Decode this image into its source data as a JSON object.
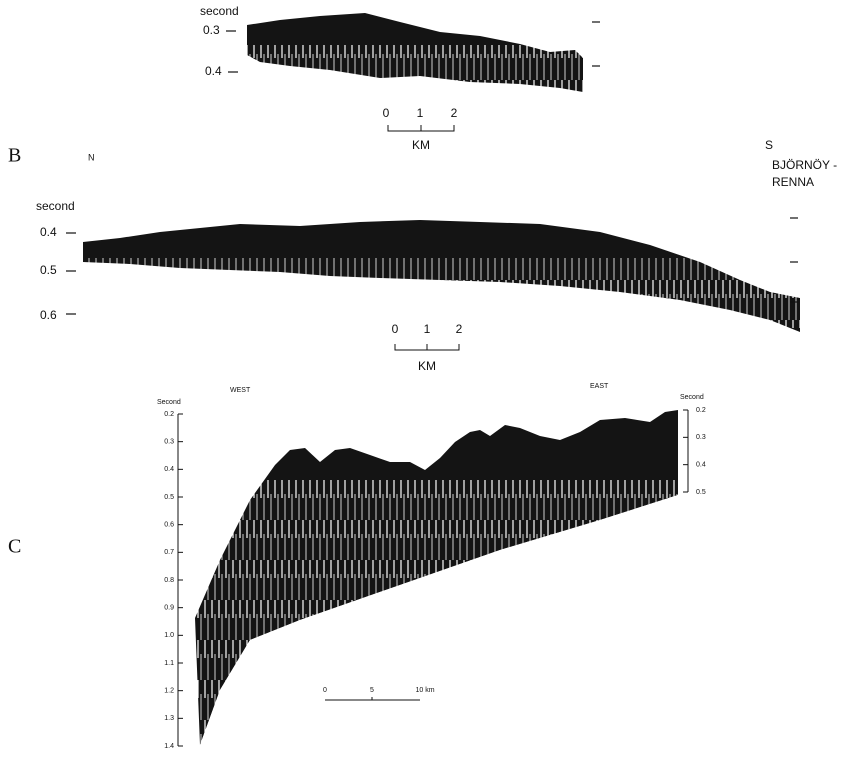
{
  "panels": [
    {
      "axis_title": "second",
      "ticks": [
        "0.3",
        "0.4"
      ],
      "scale": {
        "labels": [
          "0",
          "1",
          "2"
        ],
        "unit": "KM"
      }
    },
    {
      "label": "B",
      "north": "N",
      "south": "S",
      "place": [
        "BJÖRNÖY -",
        "RENNA"
      ],
      "axis_title": "second",
      "ticks": [
        "0.4",
        "0.5",
        "0.6"
      ],
      "scale": {
        "labels": [
          "0",
          "1",
          "2"
        ],
        "unit": "KM"
      }
    },
    {
      "label": "C",
      "west": "WEST",
      "east": "EAST",
      "left_axis": {
        "title": "Second",
        "ticks": [
          "0.2",
          "0.3",
          "0.4",
          "0.5",
          "0.6",
          "0.7",
          "0.8",
          "0.9",
          "1.0",
          "1.1",
          "1.2",
          "1.3",
          "1.4"
        ]
      },
      "right_axis": {
        "title": "Second",
        "ticks": [
          "0.2",
          "0.3",
          "0.4",
          "0.5"
        ]
      },
      "scale": {
        "labels": [
          "0",
          "5",
          "10 km"
        ]
      }
    }
  ]
}
